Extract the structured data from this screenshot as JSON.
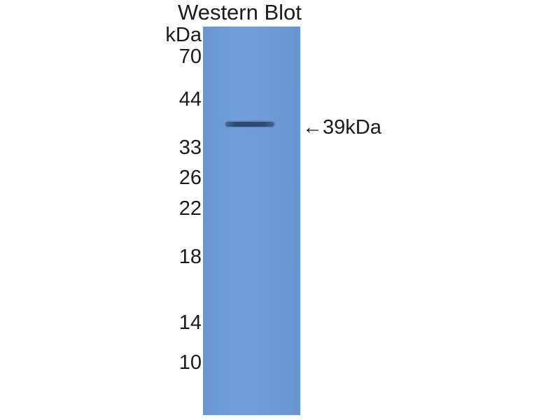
{
  "title": "Western Blot",
  "unit_label": "kDa",
  "markers": [
    "70",
    "44",
    "33",
    "26",
    "22",
    "18",
    "14",
    "10"
  ],
  "band_annotation": "←39kDa",
  "colors": {
    "membrane": "#6f9cd8",
    "band": "#2e4d76"
  }
}
